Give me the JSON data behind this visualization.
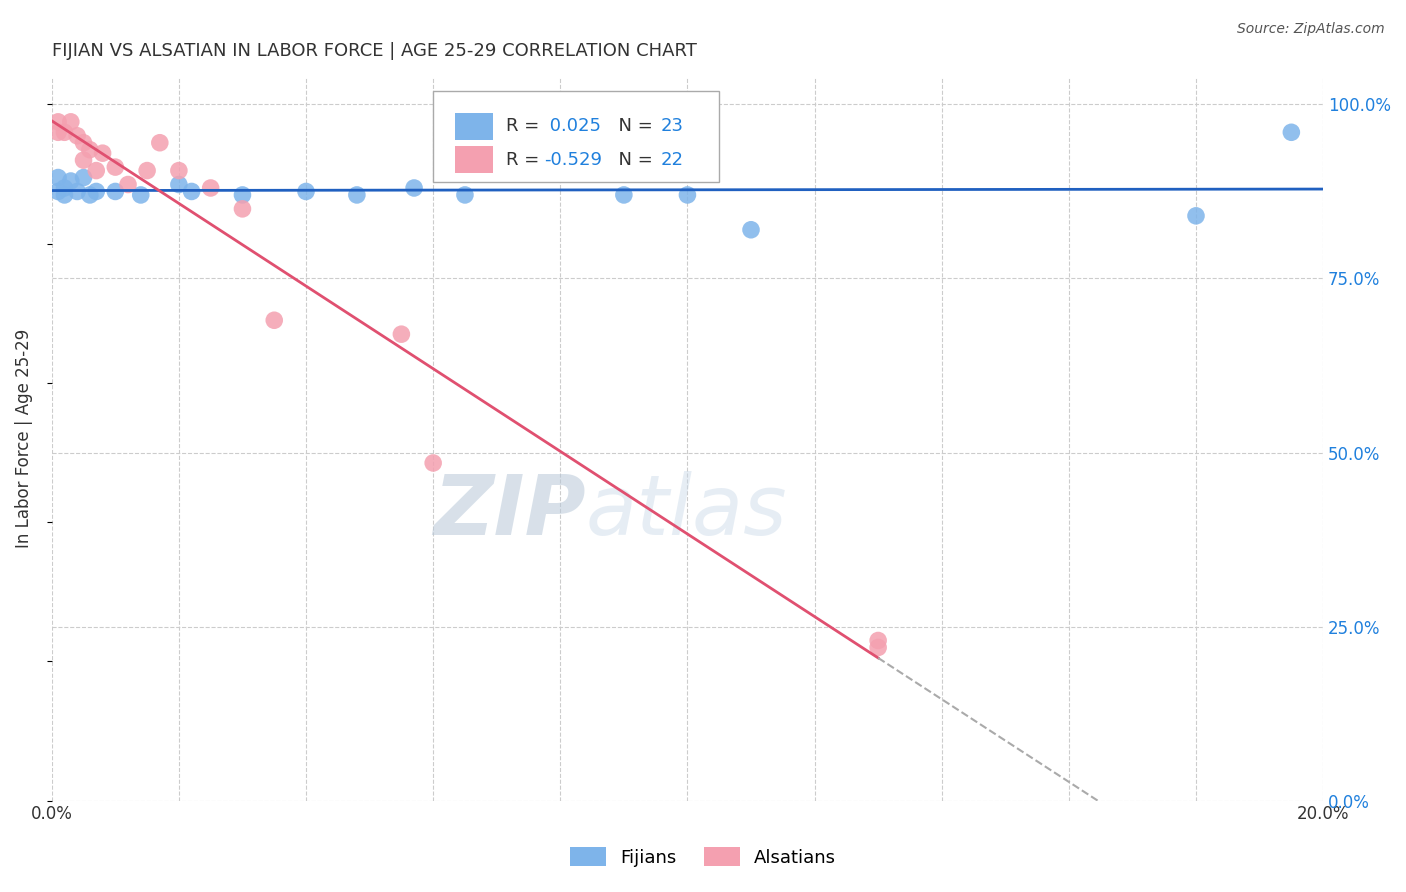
{
  "title": "FIJIAN VS ALSATIAN IN LABOR FORCE | AGE 25-29 CORRELATION CHART",
  "source": "Source: ZipAtlas.com",
  "ylabel": "In Labor Force | Age 25-29",
  "xlim": [
    0.0,
    0.2
  ],
  "ylim": [
    0.0,
    1.04
  ],
  "fijian_r": 0.025,
  "fijian_n": 23,
  "alsatian_r": -0.529,
  "alsatian_n": 22,
  "fijian_color": "#7EB4EA",
  "alsatian_color": "#F4A0B0",
  "fijian_line_color": "#2060C0",
  "alsatian_line_color": "#E05070",
  "fijian_x": [
    0.001,
    0.001,
    0.002,
    0.002,
    0.003,
    0.004,
    0.005,
    0.006,
    0.007,
    0.01,
    0.014,
    0.02,
    0.022,
    0.03,
    0.04,
    0.048,
    0.057,
    0.065,
    0.09,
    0.1,
    0.11,
    0.18,
    0.195
  ],
  "fijian_y": [
    0.895,
    0.875,
    0.87,
    0.88,
    0.89,
    0.875,
    0.895,
    0.87,
    0.875,
    0.875,
    0.87,
    0.885,
    0.875,
    0.87,
    0.875,
    0.87,
    0.88,
    0.87,
    0.87,
    0.87,
    0.82,
    0.84,
    0.96
  ],
  "alsatian_x": [
    0.001,
    0.001,
    0.002,
    0.003,
    0.004,
    0.005,
    0.005,
    0.006,
    0.007,
    0.008,
    0.01,
    0.012,
    0.015,
    0.017,
    0.02,
    0.025,
    0.03,
    0.035,
    0.055,
    0.06,
    0.13,
    0.13
  ],
  "alsatian_y": [
    0.975,
    0.96,
    0.96,
    0.975,
    0.955,
    0.945,
    0.92,
    0.935,
    0.905,
    0.93,
    0.91,
    0.885,
    0.905,
    0.945,
    0.905,
    0.88,
    0.85,
    0.69,
    0.67,
    0.485,
    0.23,
    0.22
  ],
  "watermark_zip": "ZIP",
  "watermark_atlas": "atlas",
  "background_color": "#ffffff",
  "grid_color": "#cccccc",
  "ytick_values": [
    0.0,
    0.25,
    0.5,
    0.75,
    1.0
  ],
  "xtick_values": [
    0.0,
    0.02,
    0.04,
    0.06,
    0.08,
    0.1,
    0.12,
    0.14,
    0.16,
    0.18,
    0.2
  ],
  "fijian_line_intercept": 0.876,
  "fijian_line_slope": 0.0,
  "alsatian_line_x0": 0.0,
  "alsatian_line_y0": 0.975,
  "alsatian_line_x1": 0.13,
  "alsatian_line_y1": 0.3
}
